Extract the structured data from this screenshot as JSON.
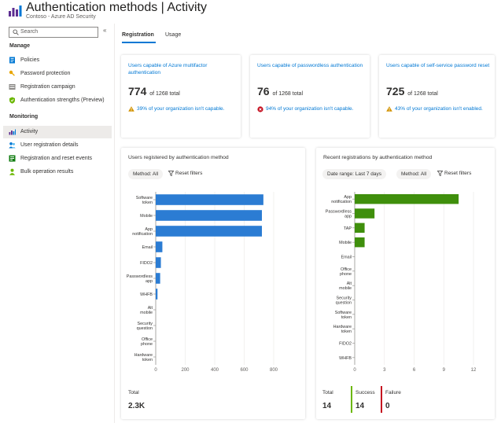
{
  "header": {
    "title": "Authentication methods | Activity",
    "subtitle": "Contoso - Azure AD Security",
    "more": "..."
  },
  "sidebar": {
    "search_placeholder": "Search",
    "collapse": "«",
    "manage_label": "Manage",
    "monitoring_label": "Monitoring",
    "manage_items": [
      {
        "label": "Policies",
        "icon": "policies-icon"
      },
      {
        "label": "Password protection",
        "icon": "key-icon"
      },
      {
        "label": "Registration campaign",
        "icon": "campaign-icon"
      },
      {
        "label": "Authentication strengths (Preview)",
        "icon": "shield-icon"
      }
    ],
    "monitoring_items": [
      {
        "label": "Activity",
        "icon": "activity-icon",
        "active": true
      },
      {
        "label": "User registration details",
        "icon": "users-icon"
      },
      {
        "label": "Registration and reset events",
        "icon": "events-icon"
      },
      {
        "label": "Bulk operation results",
        "icon": "bulk-icon"
      }
    ]
  },
  "tabs": [
    "Registration",
    "Usage"
  ],
  "kpis": [
    {
      "label": "Users capable of Azure multifactor authentication",
      "value": "774",
      "suffix": "of 1268 total",
      "note": "39% of your organization isn't capable.",
      "status": "warning"
    },
    {
      "label": "Users capable of passwordless authentication",
      "value": "76",
      "suffix": "of 1268 total",
      "note": "94% of your organization isn't capable.",
      "status": "error"
    },
    {
      "label": "Users capable of self-service password reset",
      "value": "725",
      "suffix": "of 1268 total",
      "note": "43% of your organization isn't enabled.",
      "status": "warning"
    }
  ],
  "left_chart_card": {
    "title": "Users registered by authentication method",
    "filter": "Method: All",
    "reset": "Reset filters",
    "total_label": "Total",
    "total_value": "2.3K"
  },
  "right_chart_card": {
    "title": "Recent registrations by authentication method",
    "filter_range": "Date range: Last 7 days",
    "filter_method": "Method: All",
    "reset": "Reset filters",
    "total_label": "Total",
    "total_value": "14",
    "success_label": "Success",
    "success_value": "14",
    "failure_label": "Failure",
    "failure_value": "0"
  },
  "colors": {
    "accent": "#0078d4",
    "bar_blue": "#2b7cd3",
    "bar_green": "#3f8f0c",
    "warning": "#d29200",
    "error": "#c50f1f",
    "success": "#6bb700"
  },
  "chart_data": [
    {
      "type": "bar",
      "orientation": "horizontal",
      "title": "Users registered by authentication method",
      "categories": [
        "Software token",
        "Mobile",
        "App notification",
        "Email",
        "FIDO2",
        "Passwordless app",
        "WHFB",
        "Alt mobile",
        "Security question",
        "Office phone",
        "Hardware token"
      ],
      "values": [
        730,
        720,
        720,
        45,
        35,
        30,
        12,
        0,
        0,
        0,
        0
      ],
      "xlim": [
        0,
        800
      ],
      "xticks": [
        "0",
        "200",
        "400",
        "600",
        "800"
      ],
      "color": "#2b7cd3"
    },
    {
      "type": "bar",
      "orientation": "horizontal",
      "title": "Recent registrations by authentication method",
      "categories": [
        "App notification",
        "Passwordless app",
        "TAP",
        "Mobile",
        "Email",
        "Office phone",
        "Alt mobile",
        "Security question",
        "Software token",
        "Hardware token",
        "FIDO2",
        "WHFB"
      ],
      "values": [
        10.5,
        2,
        1,
        1,
        0,
        0,
        0,
        0,
        0,
        0,
        0,
        0
      ],
      "xlim": [
        0,
        12
      ],
      "xticks": [
        "0",
        "3",
        "6",
        "9",
        "12"
      ],
      "color": "#3f8f0c"
    }
  ]
}
